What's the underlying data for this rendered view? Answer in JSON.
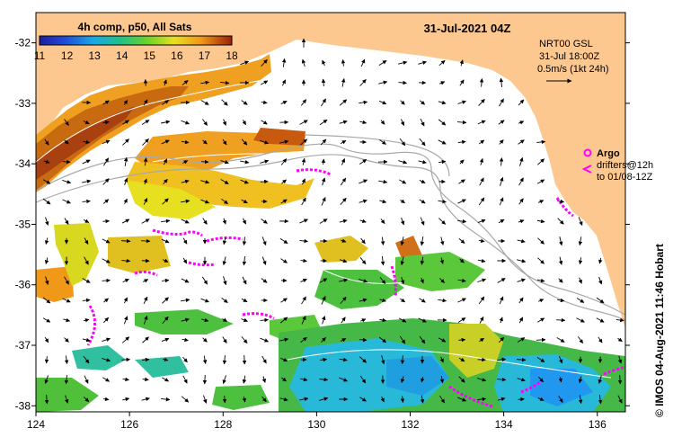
{
  "title": "31-Jul-2021 04Z",
  "colorbar": {
    "label": "4h comp, p50, All Sats",
    "ticks": [
      "11",
      "12",
      "13",
      "14",
      "15",
      "16",
      "17",
      "18"
    ],
    "min": 11,
    "max": 18
  },
  "info": {
    "product": "NRT00 GSL",
    "time": "31-Jul 18:00Z",
    "speed": "0.5m/s (1kt 24h)"
  },
  "legend": {
    "argo_label": "Argo",
    "drifters_line1": "drifters@12h",
    "drifters_line2": "to 01/08-12Z"
  },
  "credit": "© IMOS 04-Aug-2021 11:46 Hobart",
  "axes": {
    "x_ticks": [
      "124",
      "126",
      "128",
      "130",
      "132",
      "134",
      "136"
    ],
    "y_ticks": [
      "-32",
      "-33",
      "-34",
      "-35",
      "-36",
      "-37",
      "-38"
    ],
    "lon_range": [
      124,
      136.6
    ],
    "lat_range": [
      -31.5,
      -38.1
    ]
  },
  "colors": {
    "land": "#fcc890",
    "argo": "#ff00ff",
    "isobath": "#a8a8a8",
    "contour": "#ffffff"
  }
}
